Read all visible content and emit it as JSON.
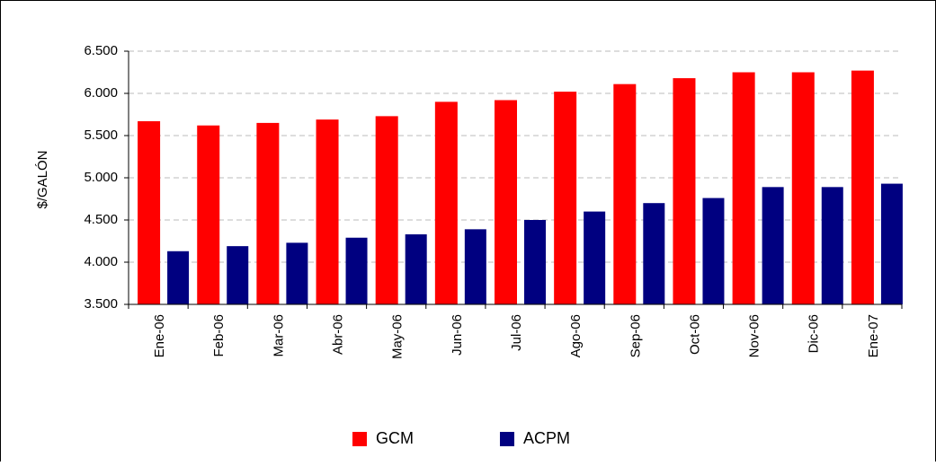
{
  "chart_data": {
    "type": "bar",
    "y_axis_label": "$/GALÓN",
    "categories": [
      "Ene-06",
      "Feb-06",
      "Mar-06",
      "Abr-06",
      "May-06",
      "Jun-06",
      "Jul-06",
      "Ago-06",
      "Sep-06",
      "Oct-06",
      "Nov-06",
      "Dic-06",
      "Ene-07"
    ],
    "series": [
      {
        "name": "GCM",
        "color": "#ff0000",
        "values": [
          5670,
          5620,
          5650,
          5690,
          5730,
          5900,
          5920,
          6020,
          6110,
          6180,
          6250,
          6250,
          6270
        ]
      },
      {
        "name": "ACPM",
        "color": "#000080",
        "values": [
          4130,
          4190,
          4230,
          4290,
          4330,
          4390,
          4500,
          4600,
          4700,
          4760,
          4890,
          4890,
          4930
        ]
      }
    ],
    "ylim": [
      3500,
      6500
    ],
    "yticks": [
      {
        "value": 3500,
        "label": "3.500"
      },
      {
        "value": 4000,
        "label": "4.000"
      },
      {
        "value": 4500,
        "label": "4.500"
      },
      {
        "value": 5000,
        "label": "5.000"
      },
      {
        "value": 5500,
        "label": "5.500"
      },
      {
        "value": 6000,
        "label": "6.000"
      },
      {
        "value": 6500,
        "label": "6.500"
      }
    ],
    "grid": true,
    "legend": "bottom"
  }
}
